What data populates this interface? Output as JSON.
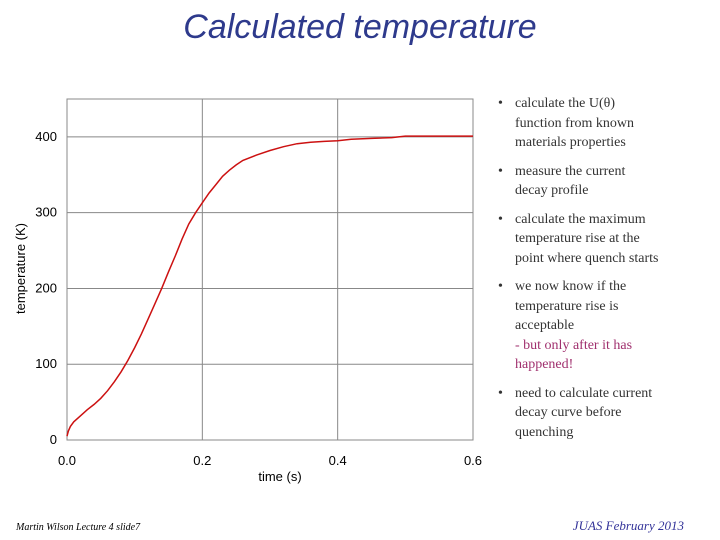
{
  "slide": {
    "title": "Calculated temperature",
    "footer_left": "Martin Wilson Lecture 4 slide7",
    "footer_right": "JUAS February 2013"
  },
  "bullets": [
    {
      "lines": [
        "calculate the U(θ)",
        "function from known",
        "materials properties"
      ]
    },
    {
      "lines": [
        "measure the current",
        "decay profile"
      ]
    },
    {
      "lines": [
        "calculate the maximum",
        "temperature rise at the",
        "point where quench starts"
      ]
    },
    {
      "lines": [
        "we now know if the",
        "temperature rise is",
        "acceptable"
      ],
      "accent_lines": [
        "- but only after it has",
        "happened!"
      ]
    },
    {
      "lines": [
        "need to calculate current",
        "decay curve before",
        "quenching"
      ]
    }
  ],
  "colors": {
    "title": "#2e3a8c",
    "curve": "#cc1111",
    "accent": "#a0306e",
    "footer_right": "#333399"
  },
  "chart_data": {
    "type": "line",
    "xlabel": "time (s)",
    "ylabel": "temperature (K)",
    "xlim": [
      0,
      0.6
    ],
    "ylim": [
      0,
      450
    ],
    "x_ticks": [
      0.0,
      0.2,
      0.4,
      0.6
    ],
    "x_tick_labels": [
      "0.0",
      "0.2",
      "0.4",
      "0.6"
    ],
    "y_ticks": [
      0,
      100,
      200,
      300,
      400
    ],
    "y_tick_labels": [
      "0",
      "100",
      "200",
      "300",
      "400"
    ],
    "grid": true,
    "series": [
      {
        "x": [
          0.0,
          0.002,
          0.005,
          0.01,
          0.02,
          0.03,
          0.04,
          0.05,
          0.06,
          0.07,
          0.08,
          0.09,
          0.1,
          0.11,
          0.12,
          0.13,
          0.14,
          0.15,
          0.16,
          0.17,
          0.18,
          0.19,
          0.2,
          0.21,
          0.22,
          0.23,
          0.24,
          0.25,
          0.26,
          0.28,
          0.3,
          0.32,
          0.34,
          0.36,
          0.38,
          0.4,
          0.42,
          0.45,
          0.48,
          0.5,
          0.55,
          0.6
        ],
        "y": [
          5,
          12,
          18,
          24,
          32,
          40,
          47,
          55,
          65,
          77,
          90,
          105,
          122,
          140,
          160,
          180,
          200,
          222,
          243,
          265,
          285,
          300,
          313,
          326,
          337,
          348,
          356,
          363,
          369,
          376,
          382,
          387,
          391,
          393,
          394,
          395,
          397,
          398,
          399,
          401,
          401,
          401
        ]
      }
    ]
  }
}
